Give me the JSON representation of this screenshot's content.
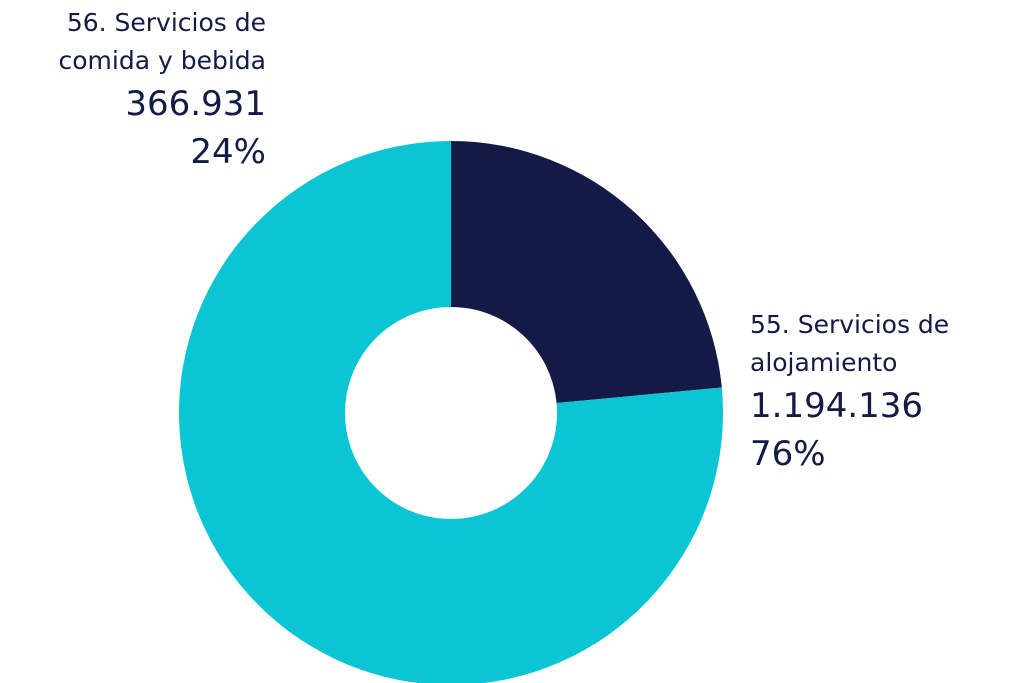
{
  "chart_data": {
    "type": "donut",
    "categories": [
      "56. Servicios de comida y bebida",
      "55. Servicios de alojamiento"
    ],
    "values": [
      366931,
      1194136
    ],
    "value_labels": [
      "366.931",
      "1.194.136"
    ],
    "percentages": [
      24,
      76
    ],
    "percent_labels": [
      "24%",
      "76%"
    ],
    "colors": [
      "#131a45",
      "#0bc5d4"
    ]
  }
}
